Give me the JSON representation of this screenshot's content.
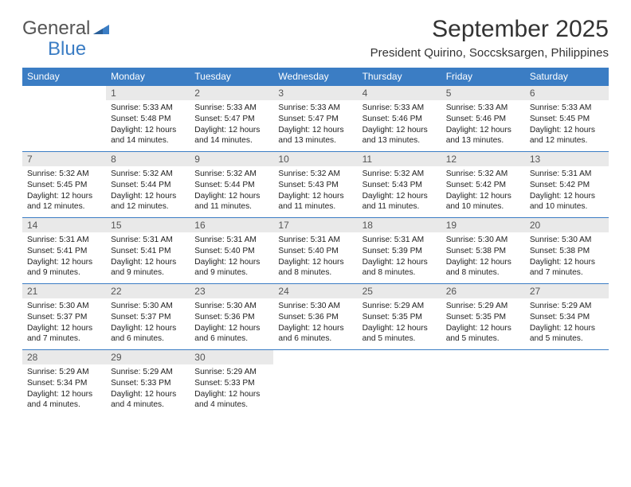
{
  "logo": {
    "text1": "General",
    "text2": "Blue"
  },
  "title": "September 2025",
  "subtitle": "President Quirino, Soccsksargen, Philippines",
  "colors": {
    "header_bg": "#3b7dc4",
    "header_text": "#ffffff",
    "daynum_bg": "#e9e9e9",
    "daynum_text": "#555555",
    "body_text": "#222222",
    "divider": "#3b7dc4",
    "logo_gray": "#555555",
    "logo_blue": "#3b7dc4",
    "page_bg": "#ffffff"
  },
  "fonts": {
    "title_size_pt": 22,
    "subtitle_size_pt": 11,
    "dayname_size_pt": 9,
    "daynum_size_pt": 9,
    "cell_body_size_pt": 7.5,
    "family": "Arial"
  },
  "daynames": [
    "Sunday",
    "Monday",
    "Tuesday",
    "Wednesday",
    "Thursday",
    "Friday",
    "Saturday"
  ],
  "weeks": [
    [
      {
        "num": "",
        "sunrise": "",
        "sunset": "",
        "daylight": ""
      },
      {
        "num": "1",
        "sunrise": "Sunrise: 5:33 AM",
        "sunset": "Sunset: 5:48 PM",
        "daylight": "Daylight: 12 hours and 14 minutes."
      },
      {
        "num": "2",
        "sunrise": "Sunrise: 5:33 AM",
        "sunset": "Sunset: 5:47 PM",
        "daylight": "Daylight: 12 hours and 14 minutes."
      },
      {
        "num": "3",
        "sunrise": "Sunrise: 5:33 AM",
        "sunset": "Sunset: 5:47 PM",
        "daylight": "Daylight: 12 hours and 13 minutes."
      },
      {
        "num": "4",
        "sunrise": "Sunrise: 5:33 AM",
        "sunset": "Sunset: 5:46 PM",
        "daylight": "Daylight: 12 hours and 13 minutes."
      },
      {
        "num": "5",
        "sunrise": "Sunrise: 5:33 AM",
        "sunset": "Sunset: 5:46 PM",
        "daylight": "Daylight: 12 hours and 13 minutes."
      },
      {
        "num": "6",
        "sunrise": "Sunrise: 5:33 AM",
        "sunset": "Sunset: 5:45 PM",
        "daylight": "Daylight: 12 hours and 12 minutes."
      }
    ],
    [
      {
        "num": "7",
        "sunrise": "Sunrise: 5:32 AM",
        "sunset": "Sunset: 5:45 PM",
        "daylight": "Daylight: 12 hours and 12 minutes."
      },
      {
        "num": "8",
        "sunrise": "Sunrise: 5:32 AM",
        "sunset": "Sunset: 5:44 PM",
        "daylight": "Daylight: 12 hours and 12 minutes."
      },
      {
        "num": "9",
        "sunrise": "Sunrise: 5:32 AM",
        "sunset": "Sunset: 5:44 PM",
        "daylight": "Daylight: 12 hours and 11 minutes."
      },
      {
        "num": "10",
        "sunrise": "Sunrise: 5:32 AM",
        "sunset": "Sunset: 5:43 PM",
        "daylight": "Daylight: 12 hours and 11 minutes."
      },
      {
        "num": "11",
        "sunrise": "Sunrise: 5:32 AM",
        "sunset": "Sunset: 5:43 PM",
        "daylight": "Daylight: 12 hours and 11 minutes."
      },
      {
        "num": "12",
        "sunrise": "Sunrise: 5:32 AM",
        "sunset": "Sunset: 5:42 PM",
        "daylight": "Daylight: 12 hours and 10 minutes."
      },
      {
        "num": "13",
        "sunrise": "Sunrise: 5:31 AM",
        "sunset": "Sunset: 5:42 PM",
        "daylight": "Daylight: 12 hours and 10 minutes."
      }
    ],
    [
      {
        "num": "14",
        "sunrise": "Sunrise: 5:31 AM",
        "sunset": "Sunset: 5:41 PM",
        "daylight": "Daylight: 12 hours and 9 minutes."
      },
      {
        "num": "15",
        "sunrise": "Sunrise: 5:31 AM",
        "sunset": "Sunset: 5:41 PM",
        "daylight": "Daylight: 12 hours and 9 minutes."
      },
      {
        "num": "16",
        "sunrise": "Sunrise: 5:31 AM",
        "sunset": "Sunset: 5:40 PM",
        "daylight": "Daylight: 12 hours and 9 minutes."
      },
      {
        "num": "17",
        "sunrise": "Sunrise: 5:31 AM",
        "sunset": "Sunset: 5:40 PM",
        "daylight": "Daylight: 12 hours and 8 minutes."
      },
      {
        "num": "18",
        "sunrise": "Sunrise: 5:31 AM",
        "sunset": "Sunset: 5:39 PM",
        "daylight": "Daylight: 12 hours and 8 minutes."
      },
      {
        "num": "19",
        "sunrise": "Sunrise: 5:30 AM",
        "sunset": "Sunset: 5:38 PM",
        "daylight": "Daylight: 12 hours and 8 minutes."
      },
      {
        "num": "20",
        "sunrise": "Sunrise: 5:30 AM",
        "sunset": "Sunset: 5:38 PM",
        "daylight": "Daylight: 12 hours and 7 minutes."
      }
    ],
    [
      {
        "num": "21",
        "sunrise": "Sunrise: 5:30 AM",
        "sunset": "Sunset: 5:37 PM",
        "daylight": "Daylight: 12 hours and 7 minutes."
      },
      {
        "num": "22",
        "sunrise": "Sunrise: 5:30 AM",
        "sunset": "Sunset: 5:37 PM",
        "daylight": "Daylight: 12 hours and 6 minutes."
      },
      {
        "num": "23",
        "sunrise": "Sunrise: 5:30 AM",
        "sunset": "Sunset: 5:36 PM",
        "daylight": "Daylight: 12 hours and 6 minutes."
      },
      {
        "num": "24",
        "sunrise": "Sunrise: 5:30 AM",
        "sunset": "Sunset: 5:36 PM",
        "daylight": "Daylight: 12 hours and 6 minutes."
      },
      {
        "num": "25",
        "sunrise": "Sunrise: 5:29 AM",
        "sunset": "Sunset: 5:35 PM",
        "daylight": "Daylight: 12 hours and 5 minutes."
      },
      {
        "num": "26",
        "sunrise": "Sunrise: 5:29 AM",
        "sunset": "Sunset: 5:35 PM",
        "daylight": "Daylight: 12 hours and 5 minutes."
      },
      {
        "num": "27",
        "sunrise": "Sunrise: 5:29 AM",
        "sunset": "Sunset: 5:34 PM",
        "daylight": "Daylight: 12 hours and 5 minutes."
      }
    ],
    [
      {
        "num": "28",
        "sunrise": "Sunrise: 5:29 AM",
        "sunset": "Sunset: 5:34 PM",
        "daylight": "Daylight: 12 hours and 4 minutes."
      },
      {
        "num": "29",
        "sunrise": "Sunrise: 5:29 AM",
        "sunset": "Sunset: 5:33 PM",
        "daylight": "Daylight: 12 hours and 4 minutes."
      },
      {
        "num": "30",
        "sunrise": "Sunrise: 5:29 AM",
        "sunset": "Sunset: 5:33 PM",
        "daylight": "Daylight: 12 hours and 4 minutes."
      },
      {
        "num": "",
        "sunrise": "",
        "sunset": "",
        "daylight": ""
      },
      {
        "num": "",
        "sunrise": "",
        "sunset": "",
        "daylight": ""
      },
      {
        "num": "",
        "sunrise": "",
        "sunset": "",
        "daylight": ""
      },
      {
        "num": "",
        "sunrise": "",
        "sunset": "",
        "daylight": ""
      }
    ]
  ]
}
